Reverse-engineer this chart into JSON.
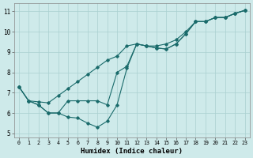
{
  "xlabel": "Humidex (Indice chaleur)",
  "bg_color": "#ceeaea",
  "grid_color": "#aad0d0",
  "line_color": "#1a6b6b",
  "xlim": [
    -0.5,
    23.5
  ],
  "ylim": [
    4.8,
    11.4
  ],
  "xticks": [
    0,
    1,
    2,
    3,
    4,
    5,
    6,
    7,
    8,
    9,
    10,
    11,
    12,
    13,
    14,
    15,
    16,
    17,
    18,
    19,
    20,
    21,
    22,
    23
  ],
  "yticks": [
    5,
    6,
    7,
    8,
    9,
    10,
    11
  ],
  "line1_x": [
    0,
    1,
    2,
    3,
    4,
    5,
    6,
    7,
    8,
    9,
    10,
    11,
    12,
    13,
    14,
    15,
    16,
    17,
    18,
    19,
    20,
    21,
    22,
    23
  ],
  "line1_y": [
    7.3,
    6.6,
    6.4,
    6.0,
    6.0,
    5.8,
    5.75,
    5.5,
    5.3,
    5.6,
    6.4,
    8.2,
    9.4,
    9.3,
    9.2,
    9.15,
    9.4,
    9.9,
    10.5,
    10.5,
    10.7,
    10.7,
    10.9,
    11.05
  ],
  "line2_x": [
    0,
    1,
    2,
    3,
    4,
    5,
    6,
    7,
    8,
    9,
    10,
    11,
    12,
    13,
    14,
    15,
    16,
    17,
    18,
    19,
    20,
    21,
    22,
    23
  ],
  "line2_y": [
    7.3,
    6.6,
    6.55,
    6.5,
    6.85,
    7.2,
    7.55,
    7.9,
    8.25,
    8.6,
    8.8,
    9.3,
    9.4,
    9.3,
    9.3,
    9.4,
    9.6,
    10.0,
    10.5,
    10.5,
    10.7,
    10.7,
    10.9,
    11.05
  ],
  "line3_x": [
    0,
    1,
    2,
    3,
    4,
    5,
    6,
    7,
    8,
    9,
    10,
    11,
    12,
    13,
    14,
    15,
    16,
    17,
    18,
    19,
    20,
    21,
    22,
    23
  ],
  "line3_y": [
    7.3,
    6.6,
    6.4,
    6.0,
    6.0,
    6.6,
    6.6,
    6.6,
    6.6,
    6.4,
    8.0,
    8.3,
    9.4,
    9.3,
    9.2,
    9.15,
    9.4,
    9.9,
    10.5,
    10.5,
    10.7,
    10.7,
    10.9,
    11.05
  ]
}
